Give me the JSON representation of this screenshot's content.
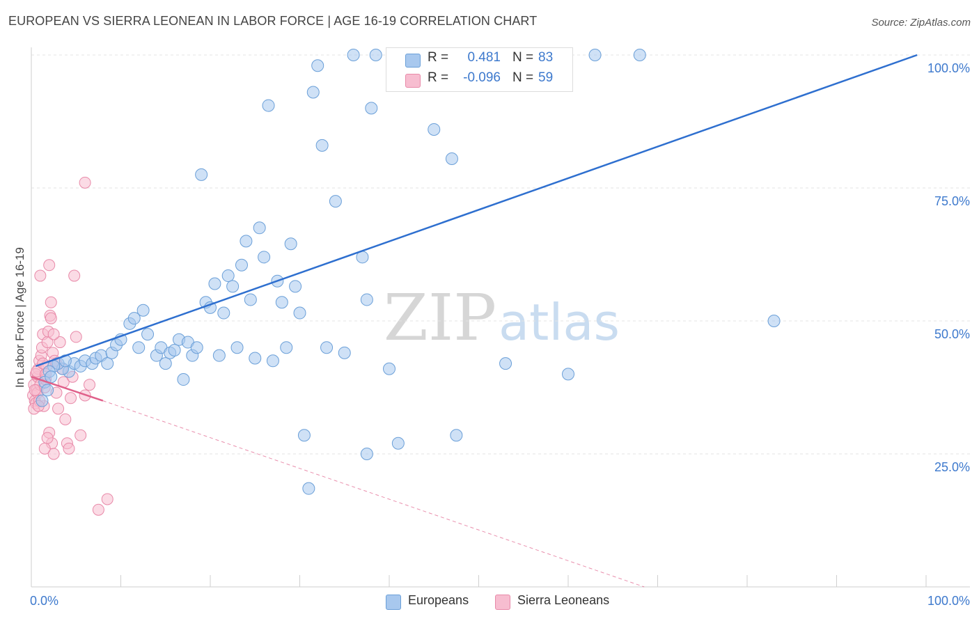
{
  "title": "EUROPEAN VS SIERRA LEONEAN IN LABOR FORCE | AGE 16-19 CORRELATION CHART",
  "source": "Source: ZipAtlas.com",
  "watermark": {
    "zip": "ZIP",
    "atlas": "atlas"
  },
  "legend": {
    "europeans": {
      "r_label": "R =",
      "r_value": "0.481",
      "n_label": "N =",
      "n_value": "83"
    },
    "sierra": {
      "r_label": "R =",
      "r_value": "-0.096",
      "n_label": "N =",
      "n_value": "59"
    }
  },
  "bottom_legend": {
    "europeans": "Europeans",
    "sierra": "Sierra Leoneans"
  },
  "colors": {
    "blue_fill": "#a8c8ee",
    "blue_stroke": "#6a9fd8",
    "blue_line": "#2e6fcf",
    "pink_fill": "#f7bdd0",
    "pink_stroke": "#e889a8",
    "pink_line": "#e0608a",
    "axis_text": "#3d79cd",
    "grid": "#e3e3e3"
  },
  "chart_data": {
    "type": "scatter",
    "title": "EUROPEAN VS SIERRA LEONEAN IN LABOR FORCE | AGE 16-19 CORRELATION CHART",
    "xlabel": "",
    "ylabel": "In Labor Force | Age 16-19",
    "xlim": [
      0,
      100
    ],
    "ylim": [
      0,
      104
    ],
    "x_tick_labels": [
      "0.0%",
      "100.0%"
    ],
    "y_ticks": [
      25,
      50,
      75,
      100
    ],
    "y_tick_labels": [
      "25.0%",
      "50.0%",
      "75.0%",
      "100.0%"
    ],
    "series": [
      {
        "name": "Europeans",
        "r": 0.481,
        "n": 83,
        "trend": {
          "x": [
            0.5,
            99
          ],
          "y": [
            41.5,
            100
          ]
        },
        "points": [
          [
            4.2,
            40.5
          ],
          [
            4.8,
            42.0
          ],
          [
            5.5,
            41.5
          ],
          [
            6.0,
            42.5
          ],
          [
            6.8,
            42.0
          ],
          [
            7.2,
            43.0
          ],
          [
            7.8,
            43.5
          ],
          [
            8.5,
            42.0
          ],
          [
            3.5,
            41.0
          ],
          [
            3.0,
            42.0
          ],
          [
            2.5,
            41.5
          ],
          [
            2.0,
            40.5
          ],
          [
            1.5,
            38.5
          ],
          [
            1.2,
            35.0
          ],
          [
            1.8,
            37.0
          ],
          [
            9.0,
            44.0
          ],
          [
            9.5,
            45.5
          ],
          [
            10.0,
            46.5
          ],
          [
            11.0,
            49.5
          ],
          [
            11.5,
            50.5
          ],
          [
            12.0,
            45.0
          ],
          [
            12.5,
            52.0
          ],
          [
            13.0,
            47.5
          ],
          [
            14.0,
            43.5
          ],
          [
            14.5,
            45.0
          ],
          [
            15.0,
            42.0
          ],
          [
            15.5,
            44.0
          ],
          [
            16.0,
            44.5
          ],
          [
            16.5,
            46.5
          ],
          [
            17.0,
            39.0
          ],
          [
            17.5,
            46.0
          ],
          [
            18.0,
            43.5
          ],
          [
            18.5,
            45.0
          ],
          [
            19.0,
            77.5
          ],
          [
            19.5,
            53.5
          ],
          [
            20.0,
            52.5
          ],
          [
            20.5,
            57.0
          ],
          [
            21.0,
            43.5
          ],
          [
            21.5,
            51.5
          ],
          [
            22.0,
            58.5
          ],
          [
            22.5,
            56.5
          ],
          [
            23.0,
            45.0
          ],
          [
            23.5,
            60.5
          ],
          [
            24.0,
            65.0
          ],
          [
            24.5,
            54.0
          ],
          [
            25.0,
            43.0
          ],
          [
            25.5,
            67.5
          ],
          [
            26.0,
            62.0
          ],
          [
            26.5,
            90.5
          ],
          [
            27.0,
            42.5
          ],
          [
            27.5,
            57.5
          ],
          [
            28.0,
            53.5
          ],
          [
            28.5,
            45.0
          ],
          [
            29.0,
            64.5
          ],
          [
            29.5,
            56.5
          ],
          [
            30.0,
            51.5
          ],
          [
            30.5,
            28.5
          ],
          [
            31.0,
            18.5
          ],
          [
            31.5,
            93.0
          ],
          [
            32.0,
            98.0
          ],
          [
            32.5,
            83.0
          ],
          [
            33.0,
            45.0
          ],
          [
            34.0,
            72.5
          ],
          [
            35.0,
            44.0
          ],
          [
            36.0,
            100.0
          ],
          [
            37.0,
            62.0
          ],
          [
            37.5,
            25.0
          ],
          [
            37.5,
            54.0
          ],
          [
            38.0,
            90.0
          ],
          [
            38.5,
            100.0
          ],
          [
            40.0,
            41.0
          ],
          [
            40.5,
            100.0
          ],
          [
            41.0,
            27.0
          ],
          [
            45.0,
            86.0
          ],
          [
            47.0,
            80.5
          ],
          [
            47.5,
            28.5
          ],
          [
            53.0,
            42.0
          ],
          [
            60.0,
            40.0
          ],
          [
            63.0,
            100.0
          ],
          [
            68.0,
            100.0
          ],
          [
            83.0,
            50.0
          ],
          [
            2.2,
            39.5
          ],
          [
            3.8,
            42.5
          ]
        ]
      },
      {
        "name": "Sierra Leoneans",
        "r": -0.096,
        "n": 59,
        "trend": {
          "x": [
            0,
            8
          ],
          "y": [
            39.5,
            35.0
          ]
        },
        "trend_dashed": {
          "x": [
            8,
            68.5
          ],
          "y": [
            35.0,
            0
          ]
        },
        "points": [
          [
            0.2,
            36.0
          ],
          [
            0.3,
            38.0
          ],
          [
            0.4,
            35.0
          ],
          [
            0.5,
            34.5
          ],
          [
            0.6,
            37.0
          ],
          [
            0.7,
            39.5
          ],
          [
            0.8,
            41.0
          ],
          [
            0.9,
            42.5
          ],
          [
            0.3,
            33.5
          ],
          [
            0.5,
            40.0
          ],
          [
            0.7,
            36.5
          ],
          [
            1.0,
            38.0
          ],
          [
            1.1,
            43.5
          ],
          [
            1.2,
            45.0
          ],
          [
            1.3,
            47.5
          ],
          [
            1.4,
            34.0
          ],
          [
            1.5,
            37.5
          ],
          [
            1.6,
            39.0
          ],
          [
            1.7,
            41.5
          ],
          [
            1.8,
            46.0
          ],
          [
            1.9,
            48.0
          ],
          [
            2.0,
            29.0
          ],
          [
            2.1,
            51.0
          ],
          [
            2.2,
            53.5
          ],
          [
            2.3,
            27.0
          ],
          [
            2.4,
            44.0
          ],
          [
            2.5,
            25.0
          ],
          [
            2.6,
            42.5
          ],
          [
            2.8,
            36.5
          ],
          [
            3.0,
            33.5
          ],
          [
            3.2,
            46.0
          ],
          [
            3.4,
            41.0
          ],
          [
            3.6,
            38.5
          ],
          [
            3.8,
            31.5
          ],
          [
            4.0,
            27.0
          ],
          [
            4.2,
            26.0
          ],
          [
            4.4,
            35.5
          ],
          [
            4.6,
            39.5
          ],
          [
            4.8,
            58.5
          ],
          [
            5.0,
            47.0
          ],
          [
            5.5,
            28.5
          ],
          [
            6.0,
            36.0
          ],
          [
            6.5,
            38.0
          ],
          [
            1.0,
            58.5
          ],
          [
            1.5,
            26.0
          ],
          [
            1.8,
            28.0
          ],
          [
            2.0,
            60.5
          ],
          [
            2.2,
            50.5
          ],
          [
            2.5,
            47.5
          ],
          [
            2.8,
            42.0
          ],
          [
            7.5,
            14.5
          ],
          [
            8.5,
            16.5
          ],
          [
            6.0,
            76.0
          ],
          [
            0.6,
            40.5
          ],
          [
            0.9,
            35.0
          ],
          [
            1.3,
            42.0
          ],
          [
            0.4,
            37.0
          ],
          [
            1.6,
            40.0
          ],
          [
            0.8,
            34.0
          ]
        ]
      }
    ]
  }
}
